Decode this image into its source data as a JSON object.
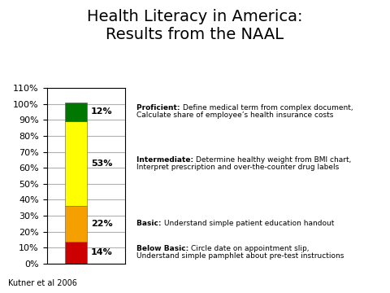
{
  "chart_data": {
    "type": "bar",
    "stacked": true,
    "title": "Health Literacy in America:\nResults from the NAAL",
    "footnote": "Kutner et al 2006",
    "categories": [
      null
    ],
    "series": [
      {
        "name": "Below Basic:",
        "color": "#cc0000",
        "values": [
          14
        ],
        "value_labels": [
          "14%"
        ],
        "annotation": [
          "Circle date on appointment slip,",
          "Understand simple pamphlet about pre-test instructions"
        ]
      },
      {
        "name": "Basic:",
        "color": "#f5a000",
        "values": [
          22
        ],
        "value_labels": [
          "22%"
        ],
        "annotation": [
          "Understand simple patient education handout"
        ]
      },
      {
        "name": "Intermediate:",
        "color": "#ffff00",
        "values": [
          53
        ],
        "value_labels": [
          "53%"
        ],
        "annotation": [
          "Determine healthy weight from BMI chart,",
          "Interpret prescription and over-the-counter drug labels"
        ]
      },
      {
        "name": "Proficient:",
        "color": "#007700",
        "values": [
          12
        ],
        "value_labels": [
          "12%"
        ],
        "annotation": [
          "Define medical term from complex document,",
          "Calculate share of employee’s health insurance costs"
        ]
      }
    ],
    "ylim": [
      0,
      110
    ],
    "yticks": [
      {
        "value": 0,
        "label": "0%"
      },
      {
        "value": 10,
        "label": "10%"
      },
      {
        "value": 20,
        "label": "20%"
      },
      {
        "value": 30,
        "label": "30%"
      },
      {
        "value": 40,
        "label": "40%"
      },
      {
        "value": 50,
        "label": "50%"
      },
      {
        "value": 60,
        "label": "60%"
      },
      {
        "value": 70,
        "label": "70%"
      },
      {
        "value": 80,
        "label": "80%"
      },
      {
        "value": 90,
        "label": "90%"
      },
      {
        "value": 100,
        "label": "100%"
      },
      {
        "value": 110,
        "label": "110%"
      }
    ],
    "grid": true,
    "data_labels": true,
    "tick_labels": "y"
  }
}
